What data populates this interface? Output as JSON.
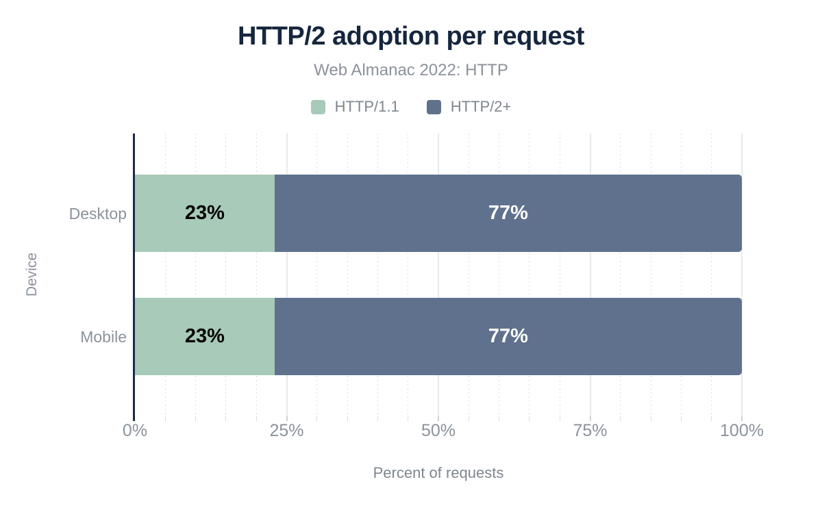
{
  "title": "HTTP/2 adoption per request",
  "subtitle": "Web Almanac 2022: HTTP",
  "colors": {
    "title_text": "#16263e",
    "muted_text": "#8b929b",
    "secondary_text": "#7e868f",
    "axis_line": "#1b2b49",
    "grid_major": "#e9e9e9",
    "grid_minor": "#dcdcdc"
  },
  "chart_data": {
    "type": "bar",
    "orientation": "horizontal",
    "stacked": true,
    "title": "HTTP/2 adoption per request",
    "subtitle": "Web Almanac 2022: HTTP",
    "xlabel": "Percent of requests",
    "ylabel": "Device",
    "xlim": [
      0,
      100
    ],
    "grid": true,
    "legend_position": "top",
    "categories": [
      "Desktop",
      "Mobile"
    ],
    "series": [
      {
        "name": "HTTP/1.1",
        "color": "#a8cab8",
        "label_color": "#000000",
        "values": [
          23,
          23
        ]
      },
      {
        "name": "HTTP/2+",
        "color": "#5f718c",
        "label_color": "#ffffff",
        "values": [
          77,
          77
        ]
      }
    ],
    "data_labels": [
      [
        "23%",
        "77%"
      ],
      [
        "23%",
        "77%"
      ]
    ],
    "x_ticks": [
      {
        "label": "0%",
        "value": 0
      },
      {
        "label": "25%",
        "value": 25
      },
      {
        "label": "50%",
        "value": 50
      },
      {
        "label": "75%",
        "value": 75
      },
      {
        "label": "100%",
        "value": 100
      }
    ],
    "minor_tick_step": 5
  }
}
